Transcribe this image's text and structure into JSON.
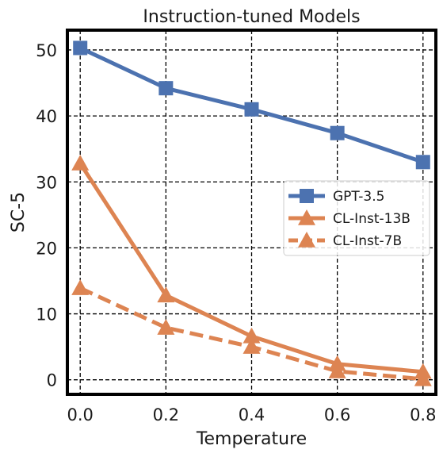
{
  "chart_data": {
    "type": "line",
    "title": "Instruction-tuned Models",
    "xlabel": "Temperature",
    "ylabel": "SC-5",
    "x": [
      0.0,
      0.2,
      0.4,
      0.6,
      0.8
    ],
    "x_tick_labels": [
      "0.0",
      "0.2",
      "0.4",
      "0.6",
      "0.8"
    ],
    "y_ticks": [
      0,
      10,
      20,
      30,
      40,
      50
    ],
    "y_tick_labels": [
      "0",
      "10",
      "20",
      "30",
      "40",
      "50"
    ],
    "xlim": [
      -0.03,
      0.83
    ],
    "ylim": [
      -2.2,
      53
    ],
    "grid": true,
    "legend_position": "center-right",
    "series": [
      {
        "name": "GPT-3.5",
        "values": [
          50.3,
          44.2,
          41.0,
          37.4,
          33.0
        ],
        "color": "#4c72b0",
        "marker": "square",
        "linestyle": "solid"
      },
      {
        "name": "CL-Inst-13B",
        "values": [
          32.8,
          12.8,
          6.6,
          2.4,
          1.2
        ],
        "color": "#dd8452",
        "marker": "triangle",
        "linestyle": "solid"
      },
      {
        "name": "CL-Inst-7B",
        "values": [
          13.9,
          7.9,
          5.0,
          1.3,
          0.1
        ],
        "color": "#dd8452",
        "marker": "triangle",
        "linestyle": "dashed"
      }
    ]
  }
}
